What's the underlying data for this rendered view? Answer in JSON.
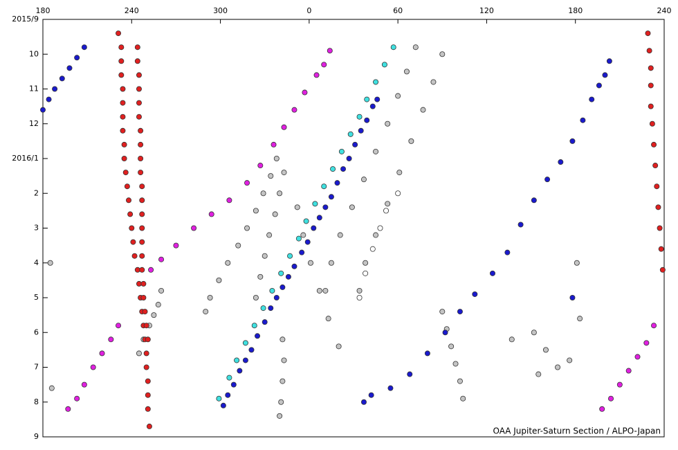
{
  "chart_data": {
    "type": "scatter",
    "credit": "OAA Jupiter-Saturn Section / ALPO-Japan",
    "xlim": [
      180,
      600
    ],
    "xticks": [
      180,
      240,
      300,
      {
        "value": 360,
        "label": "0"
      },
      {
        "value": 420,
        "label": "60"
      },
      {
        "value": 480,
        "label": "120"
      },
      {
        "value": 540,
        "label": "180"
      },
      {
        "value": 600,
        "label": "240"
      }
    ],
    "ylim": [
      0,
      12
    ],
    "y_inverted": true,
    "yticks": [
      {
        "value": 0,
        "label": "2015/9"
      },
      {
        "value": 1,
        "label": "10"
      },
      {
        "value": 2,
        "label": "11"
      },
      {
        "value": 3,
        "label": "12"
      },
      {
        "value": 4,
        "label": "2016/1"
      },
      {
        "value": 5,
        "label": "2"
      },
      {
        "value": 6,
        "label": "3"
      },
      {
        "value": 7,
        "label": "4"
      },
      {
        "value": 8,
        "label": "5"
      },
      {
        "value": 9,
        "label": "6"
      },
      {
        "value": 10,
        "label": "7"
      },
      {
        "value": 11,
        "label": "8"
      },
      {
        "value": 12,
        "label": "9"
      }
    ],
    "grid": false,
    "series": [
      {
        "color": "#c4c4c4",
        "x": [
          338,
          334,
          329,
          324,
          318,
          312,
          305,
          299,
          293,
          290,
          343,
          340,
          337,
          333,
          330,
          327,
          324,
          432,
          426,
          420,
          413,
          405,
          397,
          389,
          381,
          375,
          371,
          450,
          444,
          437,
          429,
          421,
          413,
          405,
          398,
          394,
          352,
          356,
          361,
          367,
          373,
          380,
          450,
          453,
          456,
          459,
          462,
          464,
          342,
          343,
          342,
          341,
          340,
          185,
          186,
          541,
          543,
          512,
          520,
          528,
          515,
          497,
          536,
          260,
          258,
          255,
          252,
          248,
          245
        ],
        "values": [
          4.0,
          4.5,
          5.0,
          5.5,
          6.0,
          6.5,
          7.0,
          7.5,
          8.0,
          8.4,
          4.4,
          5.0,
          5.6,
          6.2,
          6.8,
          7.4,
          8.0,
          0.8,
          1.5,
          2.2,
          3.0,
          3.8,
          4.6,
          5.4,
          6.2,
          7.0,
          7.8,
          1.0,
          1.8,
          2.6,
          3.5,
          4.4,
          5.3,
          6.2,
          7.0,
          7.8,
          5.4,
          6.2,
          7.0,
          7.8,
          8.6,
          9.4,
          8.4,
          8.9,
          9.4,
          9.9,
          10.4,
          10.9,
          9.2,
          9.8,
          10.4,
          11.0,
          11.4,
          7.0,
          10.6,
          7.0,
          8.6,
          9.0,
          9.5,
          10.0,
          10.2,
          9.2,
          9.8,
          7.8,
          8.2,
          8.5,
          8.8,
          9.2,
          9.6
        ]
      },
      {
        "color": "#ffffff",
        "x": [
          394,
          398,
          403,
          408,
          412,
          420
        ],
        "values": [
          8.0,
          7.3,
          6.6,
          6.0,
          5.5,
          5.0
        ]
      },
      {
        "color": "#e02020",
        "x": [
          231,
          233,
          233,
          233,
          234,
          234,
          234,
          234,
          235,
          235,
          236,
          237,
          238,
          239,
          240,
          241,
          242,
          244,
          245,
          246,
          247,
          248,
          249,
          250,
          250,
          251,
          251,
          251,
          252,
          244,
          244,
          245,
          245,
          245,
          245,
          246,
          246,
          246,
          246,
          247,
          247,
          247,
          247,
          247,
          247,
          247,
          248,
          248,
          249,
          250,
          251,
          589,
          590,
          591,
          591,
          591,
          592,
          593,
          594,
          595,
          596,
          597,
          598,
          599
        ],
        "values": [
          0.4,
          0.8,
          1.2,
          1.6,
          2.0,
          2.4,
          2.8,
          3.2,
          3.6,
          4.0,
          4.4,
          4.8,
          5.2,
          5.6,
          6.0,
          6.4,
          6.8,
          7.2,
          7.6,
          8.0,
          8.4,
          8.8,
          9.2,
          9.6,
          10.0,
          10.4,
          10.8,
          11.2,
          11.7,
          0.8,
          1.2,
          1.6,
          2.0,
          2.4,
          2.8,
          3.2,
          3.6,
          4.0,
          4.4,
          4.8,
          5.2,
          5.6,
          6.0,
          6.4,
          6.8,
          7.2,
          7.6,
          8.0,
          8.4,
          8.8,
          9.2,
          0.4,
          0.9,
          1.4,
          1.9,
          2.5,
          3.0,
          3.6,
          4.2,
          4.8,
          5.4,
          6.0,
          6.6,
          7.2
        ]
      },
      {
        "color": "#e020e0",
        "x": [
          374,
          370,
          365,
          357,
          350,
          343,
          336,
          327,
          318,
          306,
          294,
          282,
          270,
          260,
          253,
          231,
          226,
          220,
          214,
          208,
          203,
          197,
          593,
          588,
          582,
          576,
          570,
          564,
          558
        ],
        "values": [
          0.9,
          1.3,
          1.6,
          2.1,
          2.6,
          3.1,
          3.6,
          4.2,
          4.7,
          5.2,
          5.6,
          6.0,
          6.5,
          6.9,
          7.2,
          8.8,
          9.2,
          9.6,
          10.0,
          10.5,
          10.9,
          11.2,
          8.8,
          9.3,
          9.7,
          10.1,
          10.5,
          10.9,
          11.2
        ]
      },
      {
        "color": "#40e0e0",
        "x": [
          417,
          411,
          405,
          399,
          394,
          388,
          382,
          376,
          370,
          364,
          358,
          353,
          347,
          341,
          335,
          329,
          323,
          317,
          311,
          306,
          299
        ],
        "values": [
          0.8,
          1.3,
          1.8,
          2.3,
          2.8,
          3.3,
          3.8,
          4.3,
          4.8,
          5.3,
          5.8,
          6.3,
          6.8,
          7.3,
          7.8,
          8.3,
          8.8,
          9.3,
          9.8,
          10.3,
          10.9
        ]
      },
      {
        "color": "#1a1acd",
        "x": [
          302,
          305,
          309,
          313,
          317,
          321,
          325,
          330,
          334,
          338,
          342,
          346,
          350,
          355,
          359,
          363,
          367,
          371,
          375,
          379,
          383,
          387,
          391,
          395,
          399,
          403,
          406,
          180,
          184,
          188,
          193,
          198,
          203,
          208,
          563,
          560,
          556,
          551,
          545,
          538,
          530,
          521,
          512,
          503,
          494,
          484,
          472,
          462,
          452,
          440,
          428,
          415,
          402,
          397,
          538
        ],
        "values": [
          11.1,
          10.8,
          10.5,
          10.1,
          9.8,
          9.5,
          9.1,
          8.7,
          8.3,
          8.0,
          7.7,
          7.4,
          7.1,
          6.7,
          6.4,
          6.0,
          5.7,
          5.4,
          5.1,
          4.7,
          4.3,
          4.0,
          3.6,
          3.2,
          2.9,
          2.5,
          2.3,
          2.6,
          2.3,
          2.0,
          1.7,
          1.4,
          1.1,
          0.8,
          1.2,
          1.6,
          1.9,
          2.3,
          2.9,
          3.5,
          4.1,
          4.6,
          5.2,
          5.9,
          6.7,
          7.3,
          7.9,
          8.4,
          9.0,
          9.6,
          10.2,
          10.6,
          10.8,
          11.0,
          8.0
        ]
      }
    ]
  }
}
